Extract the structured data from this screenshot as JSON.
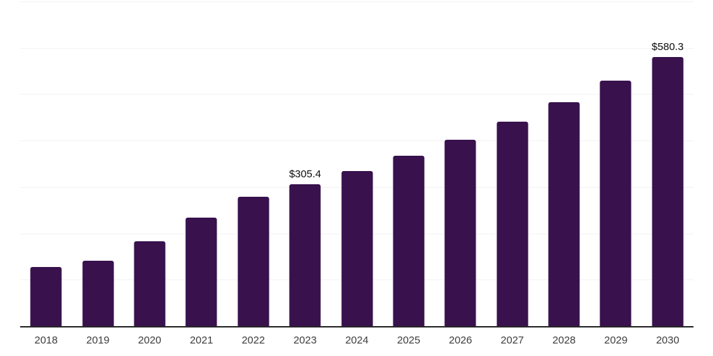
{
  "chart_data": {
    "type": "bar",
    "categories": [
      "2018",
      "2019",
      "2020",
      "2021",
      "2022",
      "2023",
      "2024",
      "2025",
      "2026",
      "2027",
      "2028",
      "2029",
      "2030"
    ],
    "values": [
      127.0,
      140.9,
      182.6,
      234.4,
      279.1,
      305.4,
      334.7,
      366.9,
      402.1,
      440.8,
      483.1,
      529.5,
      580.3
    ],
    "value_labels": [
      {
        "index": 5,
        "category": "2023",
        "text": "$305.4"
      },
      {
        "index": 12,
        "category": "2030",
        "text": "$580.3"
      }
    ],
    "xlabel": "",
    "ylabel": "",
    "ylim": [
      0,
      700
    ],
    "gridline_interval": 100,
    "grid": true,
    "legend_visible": false,
    "y_tick_labels_visible": false,
    "colors": {
      "bar": "#38114d",
      "gridline": "#f2f2f2",
      "axis_line": "#262626",
      "tick_label": "#3d3d3d",
      "value_label": "#0d0d0d",
      "background": "#ffffff"
    }
  }
}
